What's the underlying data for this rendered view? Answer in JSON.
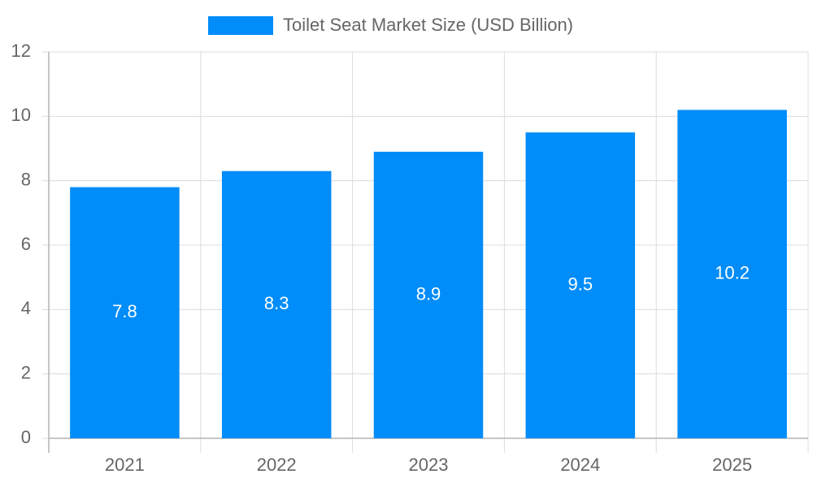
{
  "chart_data": {
    "type": "bar",
    "categories": [
      "2021",
      "2022",
      "2023",
      "2024",
      "2025"
    ],
    "series": [
      {
        "name": "Toilet Seat Market Size (USD Billion)",
        "color": "#008cf9",
        "values": [
          7.8,
          8.3,
          8.9,
          9.5,
          10.2
        ]
      }
    ],
    "ylim": [
      0,
      12
    ],
    "yticks": [
      0,
      2,
      4,
      6,
      8,
      10,
      12
    ],
    "grid": true,
    "legend": "top",
    "data_labels": true
  }
}
